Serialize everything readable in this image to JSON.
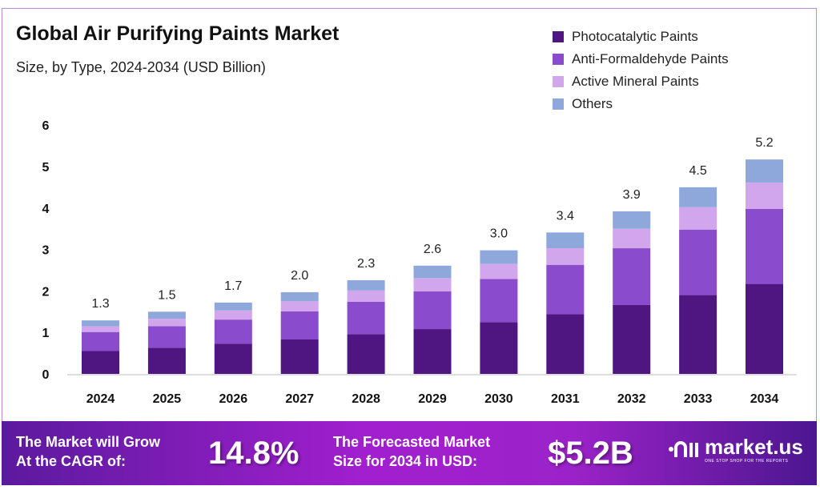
{
  "chart_data": {
    "type": "bar",
    "stacked": true,
    "title": "Global Air Purifying Paints Market",
    "subtitle": "Size, by Type, 2024-2034 (USD Billion)",
    "categories": [
      "2024",
      "2025",
      "2026",
      "2027",
      "2028",
      "2029",
      "2030",
      "2031",
      "2032",
      "2033",
      "2034"
    ],
    "series": [
      {
        "name": "Photocatalytic Paints",
        "color": "#4f1581",
        "values": [
          0.55,
          0.63,
          0.73,
          0.83,
          0.96,
          1.08,
          1.25,
          1.44,
          1.66,
          1.9,
          2.17
        ]
      },
      {
        "name": "Anti-Formaldehyde Paints",
        "color": "#8a4ccc",
        "values": [
          0.46,
          0.52,
          0.58,
          0.68,
          0.78,
          0.91,
          1.04,
          1.19,
          1.37,
          1.58,
          1.81
        ]
      },
      {
        "name": "Active Mineral Paints",
        "color": "#d2a6ec",
        "values": [
          0.14,
          0.18,
          0.22,
          0.24,
          0.27,
          0.32,
          0.36,
          0.4,
          0.47,
          0.54,
          0.63
        ]
      },
      {
        "name": "Others",
        "color": "#8fa8dc",
        "values": [
          0.14,
          0.17,
          0.19,
          0.22,
          0.25,
          0.3,
          0.33,
          0.38,
          0.42,
          0.48,
          0.56
        ]
      }
    ],
    "totals": [
      "1.3",
      "1.5",
      "1.7",
      "2.0",
      "2.3",
      "2.6",
      "3.0",
      "3.4",
      "3.9",
      "4.5",
      "5.2"
    ],
    "yticks": [
      "0",
      "1",
      "2",
      "3",
      "4",
      "5",
      "6"
    ],
    "ylim": [
      0,
      6
    ],
    "xlabel": "",
    "ylabel": "",
    "grid": false,
    "legend_position": "top-right"
  },
  "footer": {
    "cagr_text_1": "The Market will Grow",
    "cagr_text_2": "At the CAGR of:",
    "cagr_value": "14.8%",
    "forecast_text_1": "The Forecasted Market",
    "forecast_text_2": "Size for 2034 in USD:",
    "forecast_value": "$5.2B",
    "logo_name": "market.us",
    "logo_tagline": "ONE STOP SHOP FOR THE REPORTS"
  }
}
